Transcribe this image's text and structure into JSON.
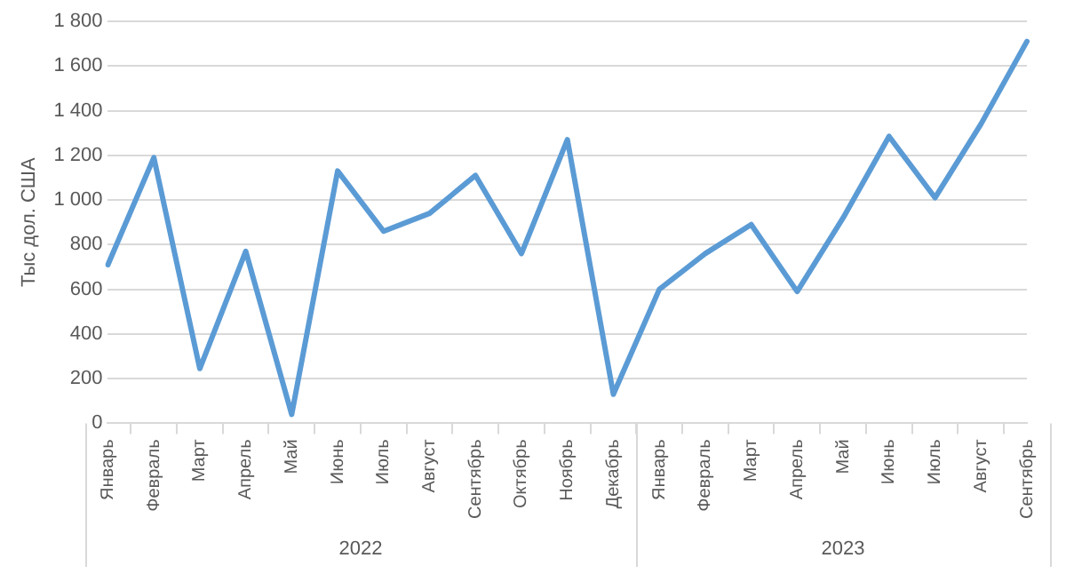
{
  "chart_data": {
    "type": "line",
    "ylabel": "Тыс дол. США",
    "categories": [
      "Январь",
      "Февраль",
      "Март",
      "Апрель",
      "Май",
      "Июнь",
      "Июль",
      "Август",
      "Сентябрь",
      "Октябрь",
      "Ноябрь",
      "Декабрь",
      "Январь",
      "Февраль",
      "Март",
      "Апрель",
      "Май",
      "Июнь",
      "Июль",
      "Август",
      "Сентябрь"
    ],
    "series": [
      {
        "color": "#5b9bd5",
        "values": [
          710,
          1190,
          245,
          770,
          40,
          1130,
          860,
          940,
          1110,
          760,
          1270,
          130,
          600,
          760,
          890,
          590,
          920,
          1285,
          1010,
          1340,
          1710
        ]
      }
    ],
    "annotations": [
      "2022",
      "2023"
    ],
    "ylim": [
      0,
      1800
    ],
    "yticks": [
      0,
      200,
      400,
      600,
      800,
      {
        "value": 1000,
        "label": "1 000"
      },
      {
        "value": 1200,
        "label": "1 200"
      },
      {
        "value": 1400,
        "label": "1 400"
      },
      {
        "value": 1600,
        "label": "1 600"
      },
      {
        "value": 1800,
        "label": "1 800"
      }
    ],
    "grid": "y",
    "legend": false,
    "marker": "none",
    "line_style": "solid"
  }
}
